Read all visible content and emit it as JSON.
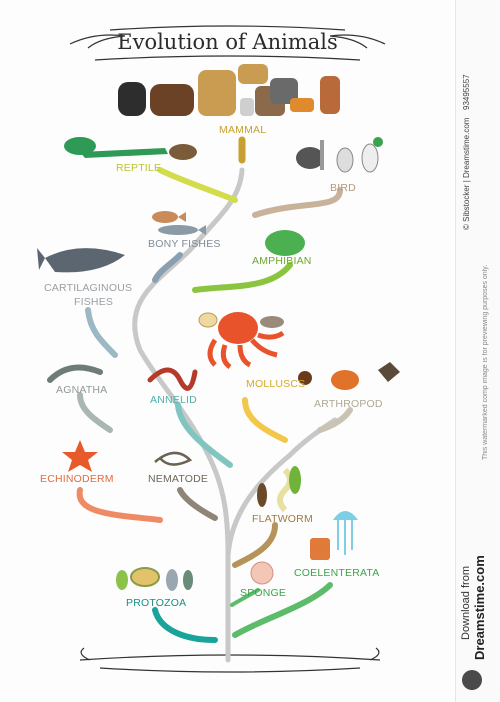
{
  "title": "Evolution of Animals",
  "labels": {
    "mammal": "MAMMAL",
    "reptile": "REPTILE",
    "bird": "BIRD",
    "bony_fishes": "BONY FISHES",
    "amphibian": "AMPHIBIAN",
    "cartilaginous": "CARTILAGINOUS",
    "fishes": "FISHES",
    "molluscs": "MOLLUSCS",
    "agnatha": "AGNATHA",
    "annelid": "ANNELID",
    "arthropod": "ARTHROPOD",
    "echinoderm": "ECHINODERM",
    "nematode": "NEMATODE",
    "flatworm": "FLATWORM",
    "coelenterata": "COELENTERATA",
    "sponge": "SPONGE",
    "protozoa": "PROTOZOA"
  },
  "colors": {
    "trunk": "#c8c8c8",
    "mammal": "#c6a030",
    "reptile": "#d3dc4a",
    "bird": "#c8b39a",
    "bony_fishes": "#8aa0b0",
    "amphibian": "#8bc53f",
    "cartilaginous": "#9bb8c4",
    "molluscs": "#f2c84b",
    "agnatha": "#a9b6b1",
    "annelid": "#7fc6c0",
    "arthropod": "#c9c3b4",
    "echinoderm": "#ef8b64",
    "nematode": "#8e8576",
    "flatworm": "#b5935a",
    "coelenterata": "#5cbc6a",
    "sponge": "#5cbc6a",
    "protozoa": "#1aa39a"
  },
  "sidebar": {
    "id_text": "93495557",
    "author_text": "© Sibstocker | Dreamstime.com",
    "disclaimer": "This watermarked comp image is for previewing purposes only.",
    "download_text": "Download from",
    "site": "Dreamstime.com"
  }
}
